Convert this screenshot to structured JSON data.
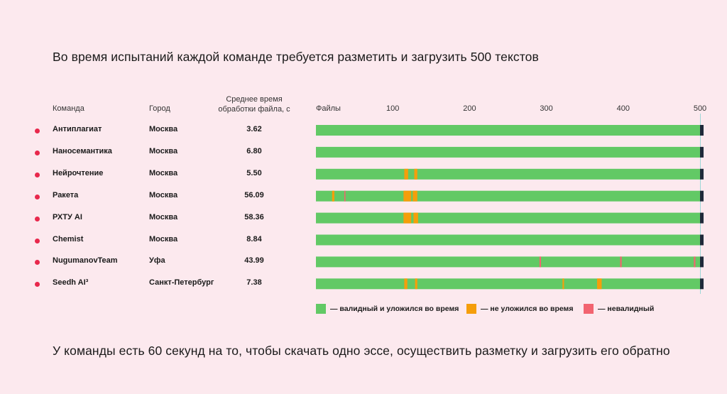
{
  "header": {
    "title": "Во время испытаний каждой команде требуется разметить и загрузить 500 текстов"
  },
  "footer": {
    "text": "У команды есть 60 секунд на то, чтобы скачать одно эссе, осуществить разметку и загрузить его обратно"
  },
  "columns": {
    "team": "Команда",
    "city": "Город",
    "time_line1": "Среднее время",
    "time_line2": "обработки файла, с",
    "files": "Файлы"
  },
  "colors": {
    "valid": "#62c965",
    "late": "#f59e0b",
    "invalid": "#f26470",
    "end": "#1f2a3a",
    "dot": "#e8284c"
  },
  "chart_data": {
    "type": "bar",
    "title": "Во время испытаний каждой команде требуется разметить и загрузить 500 текстов",
    "xlabel": "Файлы",
    "xlim": [
      0,
      500
    ],
    "xticks": [
      100,
      200,
      300,
      400,
      500
    ],
    "legend": [
      {
        "key": "valid",
        "label": "— валидный и уложился во время"
      },
      {
        "key": "late",
        "label": "— не уложился во время"
      },
      {
        "key": "invalid",
        "label": "— невалидный"
      }
    ],
    "rows": [
      {
        "team": "Антиплагиат",
        "city": "Москва",
        "time": "3.62",
        "late": [],
        "invalid": []
      },
      {
        "team": "Наносемантика",
        "city": "Москва",
        "time": "6.80",
        "late": [],
        "invalid": []
      },
      {
        "team": "Нейрочтение",
        "city": "Москва",
        "time": "5.50",
        "late": [
          [
            115,
            120
          ],
          [
            128,
            132
          ]
        ],
        "invalid": []
      },
      {
        "team": "Ракета",
        "city": "Москва",
        "time": "56.09",
        "late": [
          [
            21,
            24
          ],
          [
            114,
            124
          ],
          [
            126,
            132
          ]
        ],
        "invalid": [
          [
            37,
            38
          ]
        ]
      },
      {
        "team": "РХТУ AI",
        "city": "Москва",
        "time": "58.36",
        "late": [
          [
            114,
            124
          ],
          [
            127,
            133
          ]
        ],
        "invalid": []
      },
      {
        "team": "Chemist",
        "city": "Москва",
        "time": "8.84",
        "late": [],
        "invalid": []
      },
      {
        "team": "NugumanovTeam",
        "city": "Уфа",
        "time": "43.99",
        "late": [],
        "invalid": [
          [
            291,
            293
          ],
          [
            396,
            398
          ],
          [
            492,
            494
          ]
        ]
      },
      {
        "team": "Seedh AI³",
        "city": "Санкт-Петербург",
        "time": "7.38",
        "late": [
          [
            115,
            119
          ],
          [
            129,
            132
          ],
          [
            321,
            323
          ],
          [
            366,
            372
          ]
        ],
        "invalid": []
      }
    ]
  }
}
